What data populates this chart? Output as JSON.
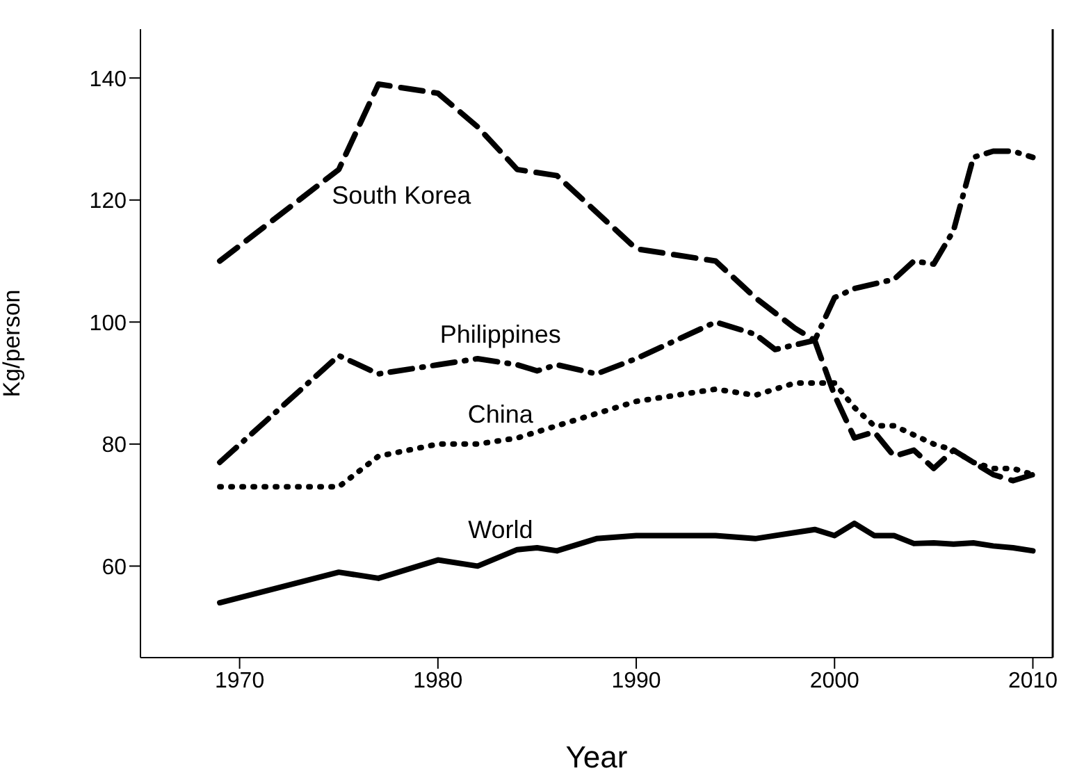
{
  "chart_data": {
    "type": "line",
    "xlabel": "Year",
    "ylabel": "Kg/person",
    "xlim": [
      1965,
      2011
    ],
    "ylim": [
      45,
      148
    ],
    "xticks": [
      1970,
      1980,
      1990,
      2000,
      2010
    ],
    "yticks": [
      60,
      80,
      100,
      120,
      140
    ],
    "grid": false,
    "legend": false,
    "marker": "none",
    "series": [
      {
        "name": "South Korea",
        "color": "#000000",
        "line_style": "dashed",
        "x": [
          1969,
          1975,
          1977,
          1980,
          1982,
          1984,
          1986,
          1990,
          1994,
          1996,
          1998,
          1999,
          2000,
          2001,
          2002,
          2003,
          2004,
          2005,
          2006,
          2007,
          2008,
          2009,
          2010
        ],
        "values": [
          110,
          125,
          139,
          137.5,
          132,
          125,
          124,
          112,
          110,
          104,
          99,
          97,
          88,
          81,
          82,
          78,
          79,
          76,
          79,
          77,
          75,
          74,
          75
        ]
      },
      {
        "name": "Philippines",
        "color": "#000000",
        "line_style": "dashdot",
        "x": [
          1969,
          1975,
          1977,
          1980,
          1982,
          1984,
          1985,
          1986,
          1988,
          1990,
          1994,
          1996,
          1997,
          1999,
          2000,
          2001,
          2003,
          2004,
          2005,
          2006,
          2007,
          2008,
          2009,
          2010
        ],
        "values": [
          77,
          94.5,
          91.5,
          93,
          94,
          93,
          92,
          93,
          91.5,
          94,
          100,
          98,
          95.5,
          97,
          104,
          105.5,
          107,
          110,
          109.5,
          115,
          127,
          128,
          128,
          127
        ]
      },
      {
        "name": "China",
        "color": "#000000",
        "line_style": "dotted",
        "x": [
          1969,
          1975,
          1977,
          1980,
          1982,
          1984,
          1986,
          1988,
          1990,
          1992,
          1994,
          1996,
          1998,
          2000,
          2001,
          2002,
          2003,
          2005,
          2006,
          2007,
          2008,
          2009,
          2010
        ],
        "values": [
          73,
          73,
          78,
          80,
          80,
          81,
          83,
          85,
          87,
          88,
          89,
          88,
          90,
          90,
          86,
          83,
          83,
          80,
          79,
          77,
          76,
          76,
          75
        ]
      },
      {
        "name": "World",
        "color": "#000000",
        "line_style": "solid",
        "x": [
          1969,
          1975,
          1977,
          1980,
          1982,
          1984,
          1985,
          1986,
          1988,
          1990,
          1994,
          1996,
          1999,
          2000,
          2001,
          2002,
          2003,
          2004,
          2005,
          2006,
          2007,
          2008,
          2009,
          2010
        ],
        "values": [
          54,
          59,
          58,
          61,
          60,
          62.7,
          63,
          62.5,
          64.5,
          65,
          65,
          64.5,
          66,
          65,
          67,
          65,
          65,
          63.7,
          63.8,
          63.6,
          63.8,
          63.3,
          63,
          62.5
        ]
      }
    ]
  }
}
